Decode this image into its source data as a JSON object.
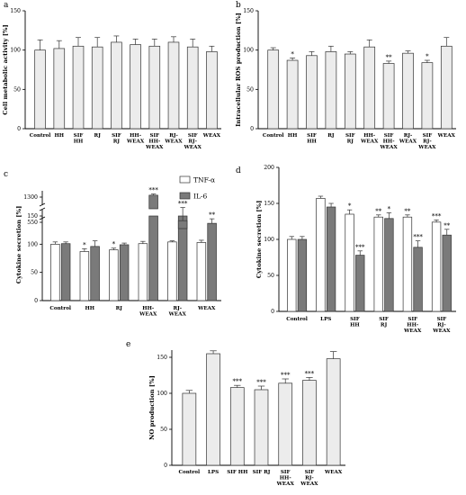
{
  "chart_data": [
    {
      "type": "bar",
      "panel_label": "a",
      "ylabel": "Cell metabolic activity [%]",
      "ylim": [
        0,
        150
      ],
      "yticks": [
        0,
        50,
        100,
        150
      ],
      "categories": [
        "Control",
        "HH",
        "SIF\nHH",
        "RJ",
        "SIF\nRJ",
        "HH-\nWEAX",
        "SIF\nHH-\nWEAX",
        "RJ-\nWEAX",
        "SIF\nRJ-\nWEAX",
        "WEAX"
      ],
      "series": [
        {
          "values": [
            100,
            102,
            105,
            104,
            110,
            107,
            105,
            110,
            104,
            98
          ],
          "errors": [
            13,
            10,
            11,
            12,
            8,
            7,
            9,
            7,
            10,
            7
          ],
          "color": "#ececec"
        }
      ],
      "annotations": [
        "",
        "",
        "",
        "",
        "",
        "",
        "",
        "",
        "",
        ""
      ]
    },
    {
      "type": "bar",
      "panel_label": "b",
      "ylabel": "Intracellular ROS production [%]",
      "ylim": [
        0,
        150
      ],
      "yticks": [
        0,
        50,
        100,
        150
      ],
      "categories": [
        "Control",
        "HH",
        "SIF\nHH",
        "RJ",
        "SIF\nRJ",
        "HH-\nWEAX",
        "SIF\nHH-\nWEAX",
        "RJ-\nWEAX",
        "SIF\nRJ-\nWEAX",
        "WEAX"
      ],
      "series": [
        {
          "values": [
            100,
            87,
            93,
            98,
            95,
            104,
            83,
            96,
            84,
            105
          ],
          "errors": [
            3,
            3,
            5,
            7,
            3,
            9,
            3,
            3,
            3,
            11
          ],
          "color": "#ececec"
        }
      ],
      "annotations": [
        "",
        "*",
        "",
        "",
        "",
        "",
        "**",
        "",
        "*",
        ""
      ]
    },
    {
      "type": "bar",
      "panel_label": "c",
      "ylabel": "Cytokine secretion [%]",
      "ylim_lower": [
        0,
        150
      ],
      "yticks_lower": [
        0,
        50,
        100,
        150
      ],
      "yticks_upper": [
        550,
        1300
      ],
      "categories": [
        "Control",
        "HH",
        "RJ",
        "HH-\nWEAX",
        "RJ-\nWEAX",
        "WEAX"
      ],
      "legend": [
        "TNF-α",
        "IL-6"
      ],
      "legend_position": "top-right",
      "series": [
        {
          "name": "TNF-α",
          "color": "#ffffff",
          "values": [
            100,
            87,
            90,
            101,
            104,
            103
          ],
          "errors": [
            4,
            5,
            3,
            4,
            2,
            4
          ],
          "annotations": [
            "",
            "*",
            "*",
            "",
            "",
            ""
          ]
        },
        {
          "name": "IL-6",
          "color": "#7a7a7a",
          "values": [
            101,
            96,
            99,
            1260,
            570,
            137
          ],
          "errors": [
            3,
            10,
            3,
            60,
            90,
            8
          ],
          "annotations": [
            "",
            "",
            "",
            "***",
            "***",
            "**"
          ]
        }
      ]
    },
    {
      "type": "bar",
      "panel_label": "d",
      "ylabel": "Cytokine secretion [%]",
      "ylim": [
        0,
        200
      ],
      "yticks": [
        0,
        50,
        100,
        150,
        200
      ],
      "categories": [
        "Control",
        "LPS",
        "SIF\nHH",
        "SIF\nRJ",
        "SIF\nHH-\nWEAX",
        "SIF\nRJ-\nWEAX"
      ],
      "series": [
        {
          "name": "TNF-α",
          "color": "#ffffff",
          "values": [
            100,
            157,
            135,
            131,
            131,
            124
          ],
          "errors": [
            4,
            3,
            6,
            3,
            3,
            3
          ],
          "annotations": [
            "",
            "",
            "*",
            "**",
            "**",
            "***"
          ]
        },
        {
          "name": "IL-6",
          "color": "#7a7a7a",
          "values": [
            100,
            145,
            78,
            129,
            89,
            106
          ],
          "errors": [
            4,
            5,
            6,
            8,
            9,
            8
          ],
          "annotations": [
            "",
            "",
            "***",
            "*",
            "***",
            "**"
          ]
        }
      ]
    },
    {
      "type": "bar",
      "panel_label": "e",
      "ylabel": "NO production [%]",
      "ylim": [
        0,
        160
      ],
      "yticks": [
        0,
        50,
        100,
        150
      ],
      "categories": [
        "Control",
        "LPS",
        "SIF HH",
        "SIF RJ",
        "SIF\nHH-\nWEAX",
        "SIF\nRJ-\nWEAX",
        "WEAX"
      ],
      "series": [
        {
          "values": [
            100,
            155,
            108,
            105,
            114,
            118,
            148
          ],
          "errors": [
            4,
            4,
            3,
            5,
            6,
            4,
            10
          ],
          "color": "#ececec"
        }
      ],
      "annotations": [
        "",
        "",
        "***",
        "***",
        "***",
        "***",
        ""
      ]
    }
  ]
}
